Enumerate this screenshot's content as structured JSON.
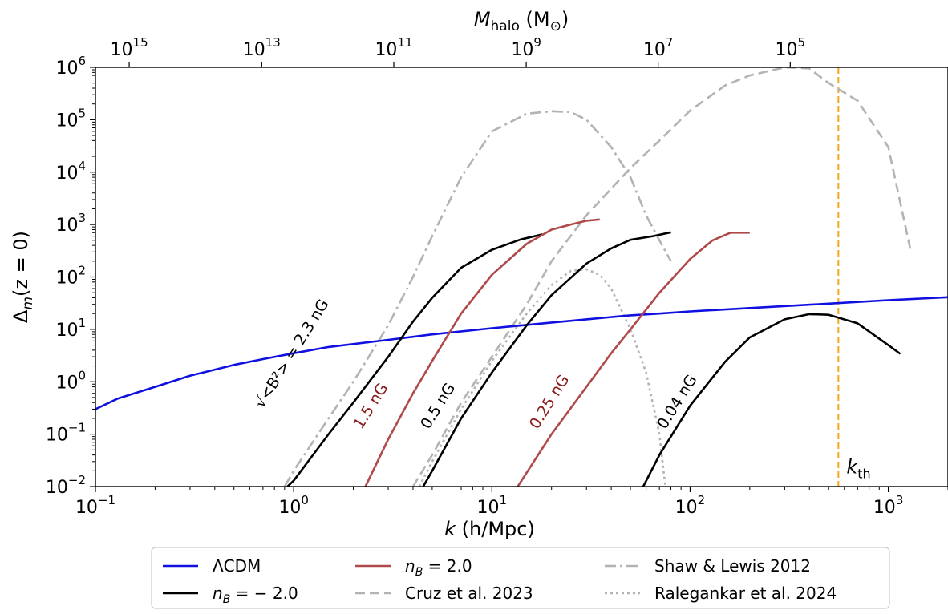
{
  "chart_data": {
    "type": "line",
    "xlabel_main": "k",
    "xlabel_unit": "(h/Mpc)",
    "ylabel_delta": "Δ",
    "ylabel_sub": "m",
    "ylabel_rest": "(z = 0)",
    "top_xlabel_main": "M",
    "top_xlabel_sub": "halo",
    "top_xlabel_unit": "(M",
    "top_xlabel_sun": "⊙",
    "top_xlabel_close": ")",
    "xscale": "log",
    "yscale": "log",
    "xlim": [
      0.1,
      2000
    ],
    "ylim": [
      0.01,
      1000000
    ],
    "grid": false,
    "legend_position": "bottom-outside",
    "x_ticks": [
      {
        "base": "10",
        "exp": "−1",
        "value": 0.1
      },
      {
        "base": "10",
        "exp": "0",
        "value": 1
      },
      {
        "base": "10",
        "exp": "1",
        "value": 10
      },
      {
        "base": "10",
        "exp": "2",
        "value": 100
      },
      {
        "base": "10",
        "exp": "3",
        "value": 1000
      }
    ],
    "y_ticks": [
      {
        "base": "10",
        "exp": "−2",
        "value": 0.01
      },
      {
        "base": "10",
        "exp": "−1",
        "value": 0.1
      },
      {
        "base": "10",
        "exp": "0",
        "value": 1
      },
      {
        "base": "10",
        "exp": "1",
        "value": 10
      },
      {
        "base": "10",
        "exp": "2",
        "value": 100
      },
      {
        "base": "10",
        "exp": "3",
        "value": 1000
      },
      {
        "base": "10",
        "exp": "4",
        "value": 10000
      },
      {
        "base": "10",
        "exp": "5",
        "value": 100000
      },
      {
        "base": "10",
        "exp": "6",
        "value": 1000000
      }
    ],
    "top_ticks": [
      {
        "base": "10",
        "exp": "15",
        "k": 0.148
      },
      {
        "base": "10",
        "exp": "13",
        "k": 0.69
      },
      {
        "base": "10",
        "exp": "11",
        "k": 3.2
      },
      {
        "base": "10",
        "exp": "9",
        "k": 14.9
      },
      {
        "base": "10",
        "exp": "7",
        "k": 69
      },
      {
        "base": "10",
        "exp": "5",
        "k": 320
      }
    ],
    "vline": {
      "x": 560,
      "label_main": "k",
      "label_sub": "th",
      "color": "#f5a623"
    },
    "series": [
      {
        "name": "ΛCDM",
        "color": "#1010e0",
        "style": "solid",
        "x": [
          0.1,
          0.13,
          0.2,
          0.3,
          0.5,
          0.7,
          1.0,
          1.5,
          3,
          5,
          10,
          20,
          30,
          50,
          70,
          100,
          200,
          500,
          1000,
          2000
        ],
        "y": [
          0.3,
          0.48,
          0.8,
          1.3,
          2.1,
          2.7,
          3.5,
          4.6,
          6.3,
          8,
          10.5,
          13.5,
          15.5,
          18.5,
          20,
          22,
          25.5,
          31,
          36,
          41
        ]
      },
      {
        "name": "n_B = −2.0",
        "color": "#000000",
        "style": "solid",
        "x": [
          0.93,
          1.0,
          1.5,
          2,
          3,
          4,
          5,
          7,
          10,
          14,
          18
        ],
        "y": [
          0.01,
          0.013,
          0.1,
          0.4,
          3,
          14,
          40,
          150,
          330,
          520,
          650
        ]
      },
      {
        "name": "",
        "color": "#000000",
        "style": "solid",
        "x": [
          4.5,
          5,
          7,
          10,
          15,
          20,
          30,
          40,
          50,
          65,
          80
        ],
        "y": [
          0.01,
          0.02,
          0.2,
          1.5,
          12,
          45,
          180,
          350,
          510,
          600,
          710
        ]
      },
      {
        "name": "",
        "color": "#000000",
        "style": "solid",
        "x": [
          58,
          70,
          100,
          150,
          200,
          300,
          400,
          500,
          700,
          1000,
          1150
        ],
        "y": [
          0.01,
          0.04,
          0.35,
          2.4,
          7,
          15.5,
          19.5,
          19,
          13,
          5,
          3.4
        ]
      },
      {
        "name": "n_B = 2.0",
        "color": "#b04a4a",
        "style": "solid",
        "x": [
          2.3,
          3,
          4,
          5,
          7,
          10,
          15,
          20,
          25,
          30,
          35
        ],
        "y": [
          0.01,
          0.08,
          0.6,
          2.5,
          20,
          110,
          430,
          800,
          1000,
          1180,
          1250
        ]
      },
      {
        "name": "",
        "color": "#b04a4a",
        "style": "solid",
        "x": [
          13.5,
          20,
          30,
          40,
          50,
          70,
          100,
          130,
          160,
          200
        ],
        "y": [
          0.01,
          0.1,
          0.8,
          3.5,
          10,
          50,
          220,
          500,
          700,
          700
        ]
      },
      {
        "name": "Cruz et al. 2023",
        "color": "#b3b3b3",
        "style": "dashed",
        "x": [
          4.0,
          5,
          7,
          10,
          15,
          20,
          30,
          50,
          70,
          100,
          150,
          200,
          300,
          400,
          500,
          700,
          1000,
          1300
        ],
        "y": [
          0.01,
          0.04,
          0.4,
          3,
          30,
          200,
          1500,
          12000,
          40000,
          150000,
          450000,
          700000,
          1000000,
          950000,
          500000,
          230000,
          30000,
          300
        ]
      },
      {
        "name": "Shaw & Lewis 2012",
        "color": "#b3b3b3",
        "style": "dashdot",
        "x": [
          0.9,
          1,
          1.5,
          2,
          3,
          4,
          5,
          7,
          10,
          15,
          20,
          25,
          30,
          40,
          50,
          60,
          70,
          80
        ],
        "y": [
          0.01,
          0.02,
          0.2,
          1,
          12,
          100,
          600,
          8000,
          60000,
          130000,
          145000,
          140000,
          100000,
          30000,
          8000,
          1500,
          500,
          200
        ]
      },
      {
        "name": "Ralegankar et al. 2024",
        "color": "#b3b3b3",
        "style": "dotted",
        "x": [
          4.3,
          5,
          7,
          10,
          15,
          20,
          25,
          30,
          35,
          40,
          50,
          60,
          70,
          75
        ],
        "y": [
          0.01,
          0.03,
          0.3,
          2.5,
          20,
          70,
          130,
          140,
          110,
          60,
          10,
          1.5,
          0.1,
          0.01
        ]
      }
    ],
    "annotations": [
      {
        "text": "√<B²> = 2.3 nG",
        "color": "#000000",
        "k": 0.7,
        "y": 0.3,
        "angle": -58
      },
      {
        "text": "1.5 nG",
        "color": "#8b1a1a",
        "k": 2.2,
        "y": 0.12,
        "angle": -58
      },
      {
        "text": "0.5 nG",
        "color": "#000000",
        "k": 4.8,
        "y": 0.12,
        "angle": -58
      },
      {
        "text": "0.25 nG",
        "color": "#8b1a1a",
        "k": 17,
        "y": 0.12,
        "angle": -58
      },
      {
        "text": "0.04 nG",
        "color": "#000000",
        "k": 75,
        "y": 0.12,
        "angle": -58
      }
    ],
    "legend": [
      {
        "label": "ΛCDM",
        "color": "#1010e0",
        "style": "solid"
      },
      {
        "label_main": "n",
        "label_sub": "B",
        "label_rest": " = − 2.0",
        "color": "#000000",
        "style": "solid"
      },
      {
        "label_main": "n",
        "label_sub": "B",
        "label_rest": " = 2.0",
        "color": "#b04a4a",
        "style": "solid"
      },
      {
        "label": "Cruz et al. 2023",
        "color": "#b3b3b3",
        "style": "dashed"
      },
      {
        "label": "Shaw & Lewis 2012",
        "color": "#b3b3b3",
        "style": "dashdot"
      },
      {
        "label": "Ralegankar et al. 2024",
        "color": "#b3b3b3",
        "style": "dotted"
      }
    ]
  }
}
